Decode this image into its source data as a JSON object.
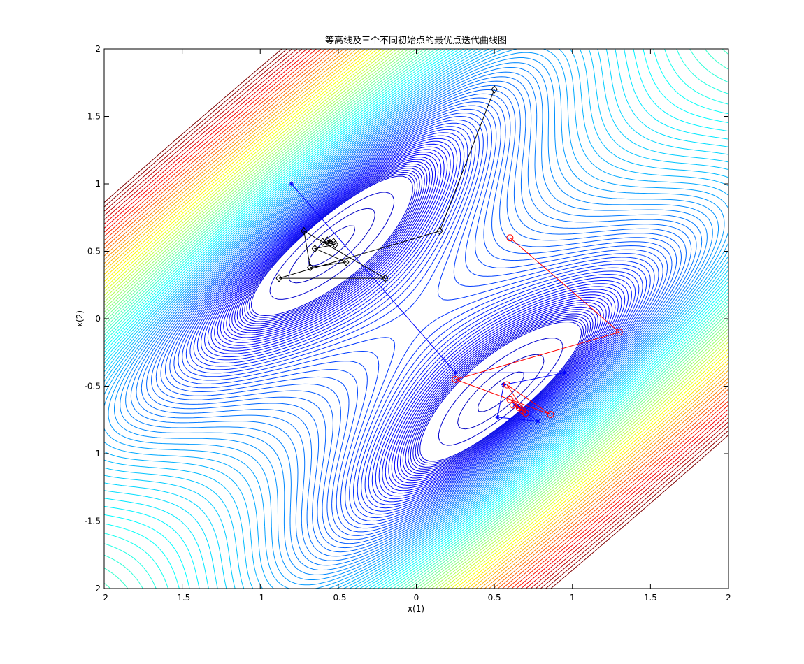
{
  "chart_data": {
    "type": "line",
    "title": "等高线及三个不同初始点的最优点迭代曲线图",
    "xlabel": "x(1)",
    "ylabel": "x(2)",
    "xlim": [
      -2,
      2
    ],
    "ylim": [
      -2,
      2
    ],
    "x_ticks": [
      -2,
      -1.5,
      -1,
      -0.5,
      0,
      0.5,
      1,
      1.5,
      2
    ],
    "y_ticks": [
      -2,
      -1.5,
      -1,
      -0.5,
      0,
      0.5,
      1,
      1.5,
      2
    ],
    "x_tick_labels": [
      "-2",
      "-1.5",
      "-1",
      "-0.5",
      "0",
      "0.5",
      "1",
      "1.5",
      "2"
    ],
    "y_tick_labels": [
      "-2",
      "-1.5",
      "-1",
      "-0.5",
      "0",
      "0.5",
      "1",
      "1.5",
      "2"
    ],
    "grid": false,
    "contour": {
      "colormap": "jet",
      "minima": [
        [
          -0.6,
          0.55
        ],
        [
          0.66,
          -0.65
        ]
      ],
      "saddle": [
        0.0,
        0.0
      ],
      "dense_corners": [
        "top-left",
        "bottom-right"
      ]
    },
    "series": [
      {
        "marker": "star",
        "color": "#0000ff",
        "x": [
          -0.8,
          0.25,
          0.95,
          0.56,
          0.52,
          0.78,
          0.63,
          0.67,
          0.65
        ],
        "y": [
          1.0,
          -0.4,
          -0.4,
          -0.49,
          -0.73,
          -0.76,
          -0.64,
          -0.66,
          -0.65
        ]
      },
      {
        "marker": "circle",
        "color": "#ff0000",
        "x": [
          0.6,
          1.3,
          0.25,
          0.86,
          0.58,
          0.7,
          0.6,
          0.68,
          0.62,
          0.66
        ],
        "y": [
          0.6,
          -0.1,
          -0.45,
          -0.71,
          -0.49,
          -0.7,
          -0.6,
          -0.68,
          -0.64,
          -0.66
        ]
      },
      {
        "marker": "diamond",
        "color": "#000000",
        "x": [
          0.5,
          0.15,
          -0.88,
          -0.2,
          -0.72,
          -0.68,
          -0.45,
          -0.65,
          -0.52,
          -0.6,
          -0.53,
          -0.57,
          -0.55
        ],
        "y": [
          1.7,
          0.65,
          0.3,
          0.3,
          0.65,
          0.38,
          0.42,
          0.52,
          0.55,
          0.57,
          0.57,
          0.58,
          0.56
        ]
      }
    ]
  }
}
